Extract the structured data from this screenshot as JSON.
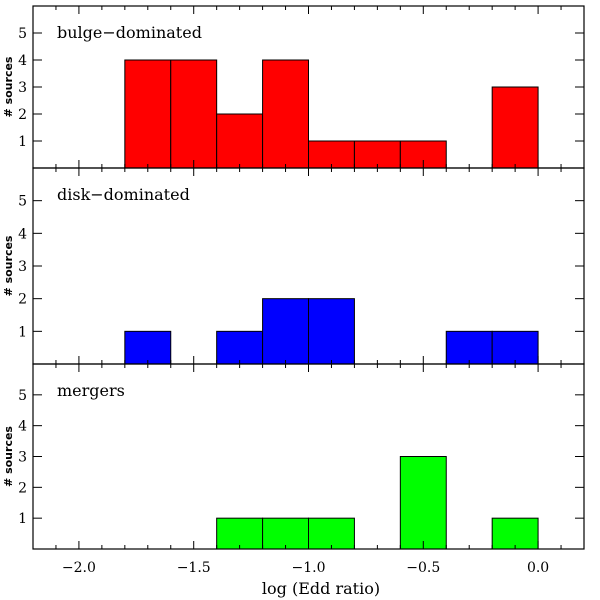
{
  "chart_data": {
    "type": "bar",
    "xlabel": "log (Edd ratio)",
    "xlim": [
      -2.2,
      0.2
    ],
    "x_ticks": [
      -2.0,
      -1.5,
      -1.0,
      -0.5,
      0.0
    ],
    "x_tick_labels": [
      "−2.0",
      "−1.5",
      "−1.0",
      "−0.5",
      "0.0"
    ],
    "bin_edges": [
      -1.8,
      -1.6,
      -1.4,
      -1.2,
      -1.0,
      -0.8,
      -0.6,
      -0.4,
      -0.2,
      0.0
    ],
    "panels": [
      {
        "name": "bulge-dominated",
        "label": "bulge−dominated",
        "ylabel": "# sources",
        "ylim": [
          0,
          6
        ],
        "y_ticks": [
          1,
          2,
          3,
          4,
          5
        ],
        "color": "#ff0000",
        "counts": [
          4,
          4,
          2,
          4,
          1,
          1,
          1,
          0,
          3
        ]
      },
      {
        "name": "disk-dominated",
        "label": "disk−dominated",
        "ylabel": "# sources",
        "ylim": [
          0,
          6
        ],
        "y_ticks": [
          1,
          2,
          3,
          4,
          5
        ],
        "color": "#0000ff",
        "counts": [
          1,
          0,
          1,
          2,
          2,
          0,
          0,
          1,
          1
        ]
      },
      {
        "name": "mergers",
        "label": "mergers",
        "ylabel": "# sources",
        "ylim": [
          0,
          6
        ],
        "y_ticks": [
          1,
          2,
          3,
          4,
          5
        ],
        "color": "#00ff00",
        "counts": [
          0,
          0,
          1,
          1,
          1,
          0,
          3,
          0,
          1
        ]
      }
    ]
  }
}
